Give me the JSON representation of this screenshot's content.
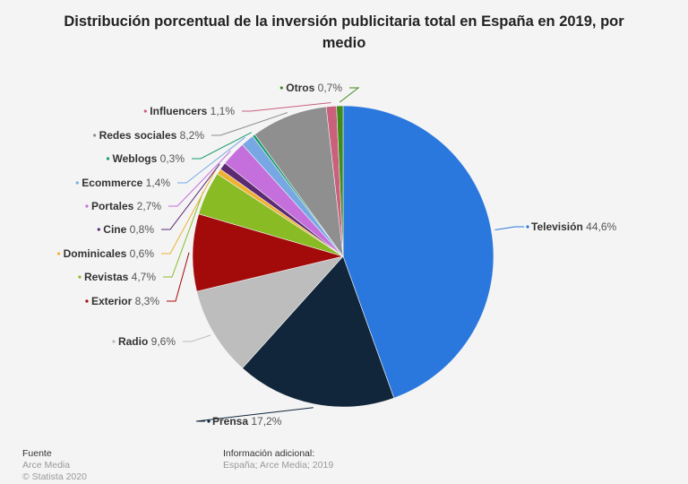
{
  "chart_data": {
    "type": "pie",
    "title": "Distribución porcentual de la inversión publicitaria total en España en 2019, por medio",
    "slices": [
      {
        "label": "Televisión",
        "value": 44.6,
        "display": "44,6%",
        "color": "#2a78de"
      },
      {
        "label": "Prensa",
        "value": 17.2,
        "display": "17,2%",
        "color": "#11263b"
      },
      {
        "label": "Radio",
        "value": 9.6,
        "display": "9,6%",
        "color": "#bdbdbd"
      },
      {
        "label": "Exterior",
        "value": 8.3,
        "display": "8,3%",
        "color": "#a30b0b"
      },
      {
        "label": "Revistas",
        "value": 4.7,
        "display": "4,7%",
        "color": "#89bb25"
      },
      {
        "label": "Dominicales",
        "value": 0.6,
        "display": "0,6%",
        "color": "#f0b132"
      },
      {
        "label": "Cine",
        "value": 0.8,
        "display": "0,8%",
        "color": "#5b2a70"
      },
      {
        "label": "Portales",
        "value": 2.7,
        "display": "2,7%",
        "color": "#c46fdb"
      },
      {
        "label": "Ecommerce",
        "value": 1.4,
        "display": "1,4%",
        "color": "#78a8e4"
      },
      {
        "label": "Weblogs",
        "value": 0.3,
        "display": "0,3%",
        "color": "#159a6c"
      },
      {
        "label": "Redes sociales",
        "value": 8.2,
        "display": "8,2%",
        "color": "#8f8f8f"
      },
      {
        "label": "Influencers",
        "value": 1.1,
        "display": "1,1%",
        "color": "#c9607c"
      },
      {
        "label": "Otros",
        "value": 0.7,
        "display": "0,7%",
        "color": "#3f8c1b"
      }
    ]
  },
  "footer": {
    "source_heading": "Fuente",
    "source": "Arce Media",
    "copyright": "© Statista 2020",
    "info_heading": "Información adicional:",
    "info": "España; Arce Media; 2019"
  }
}
